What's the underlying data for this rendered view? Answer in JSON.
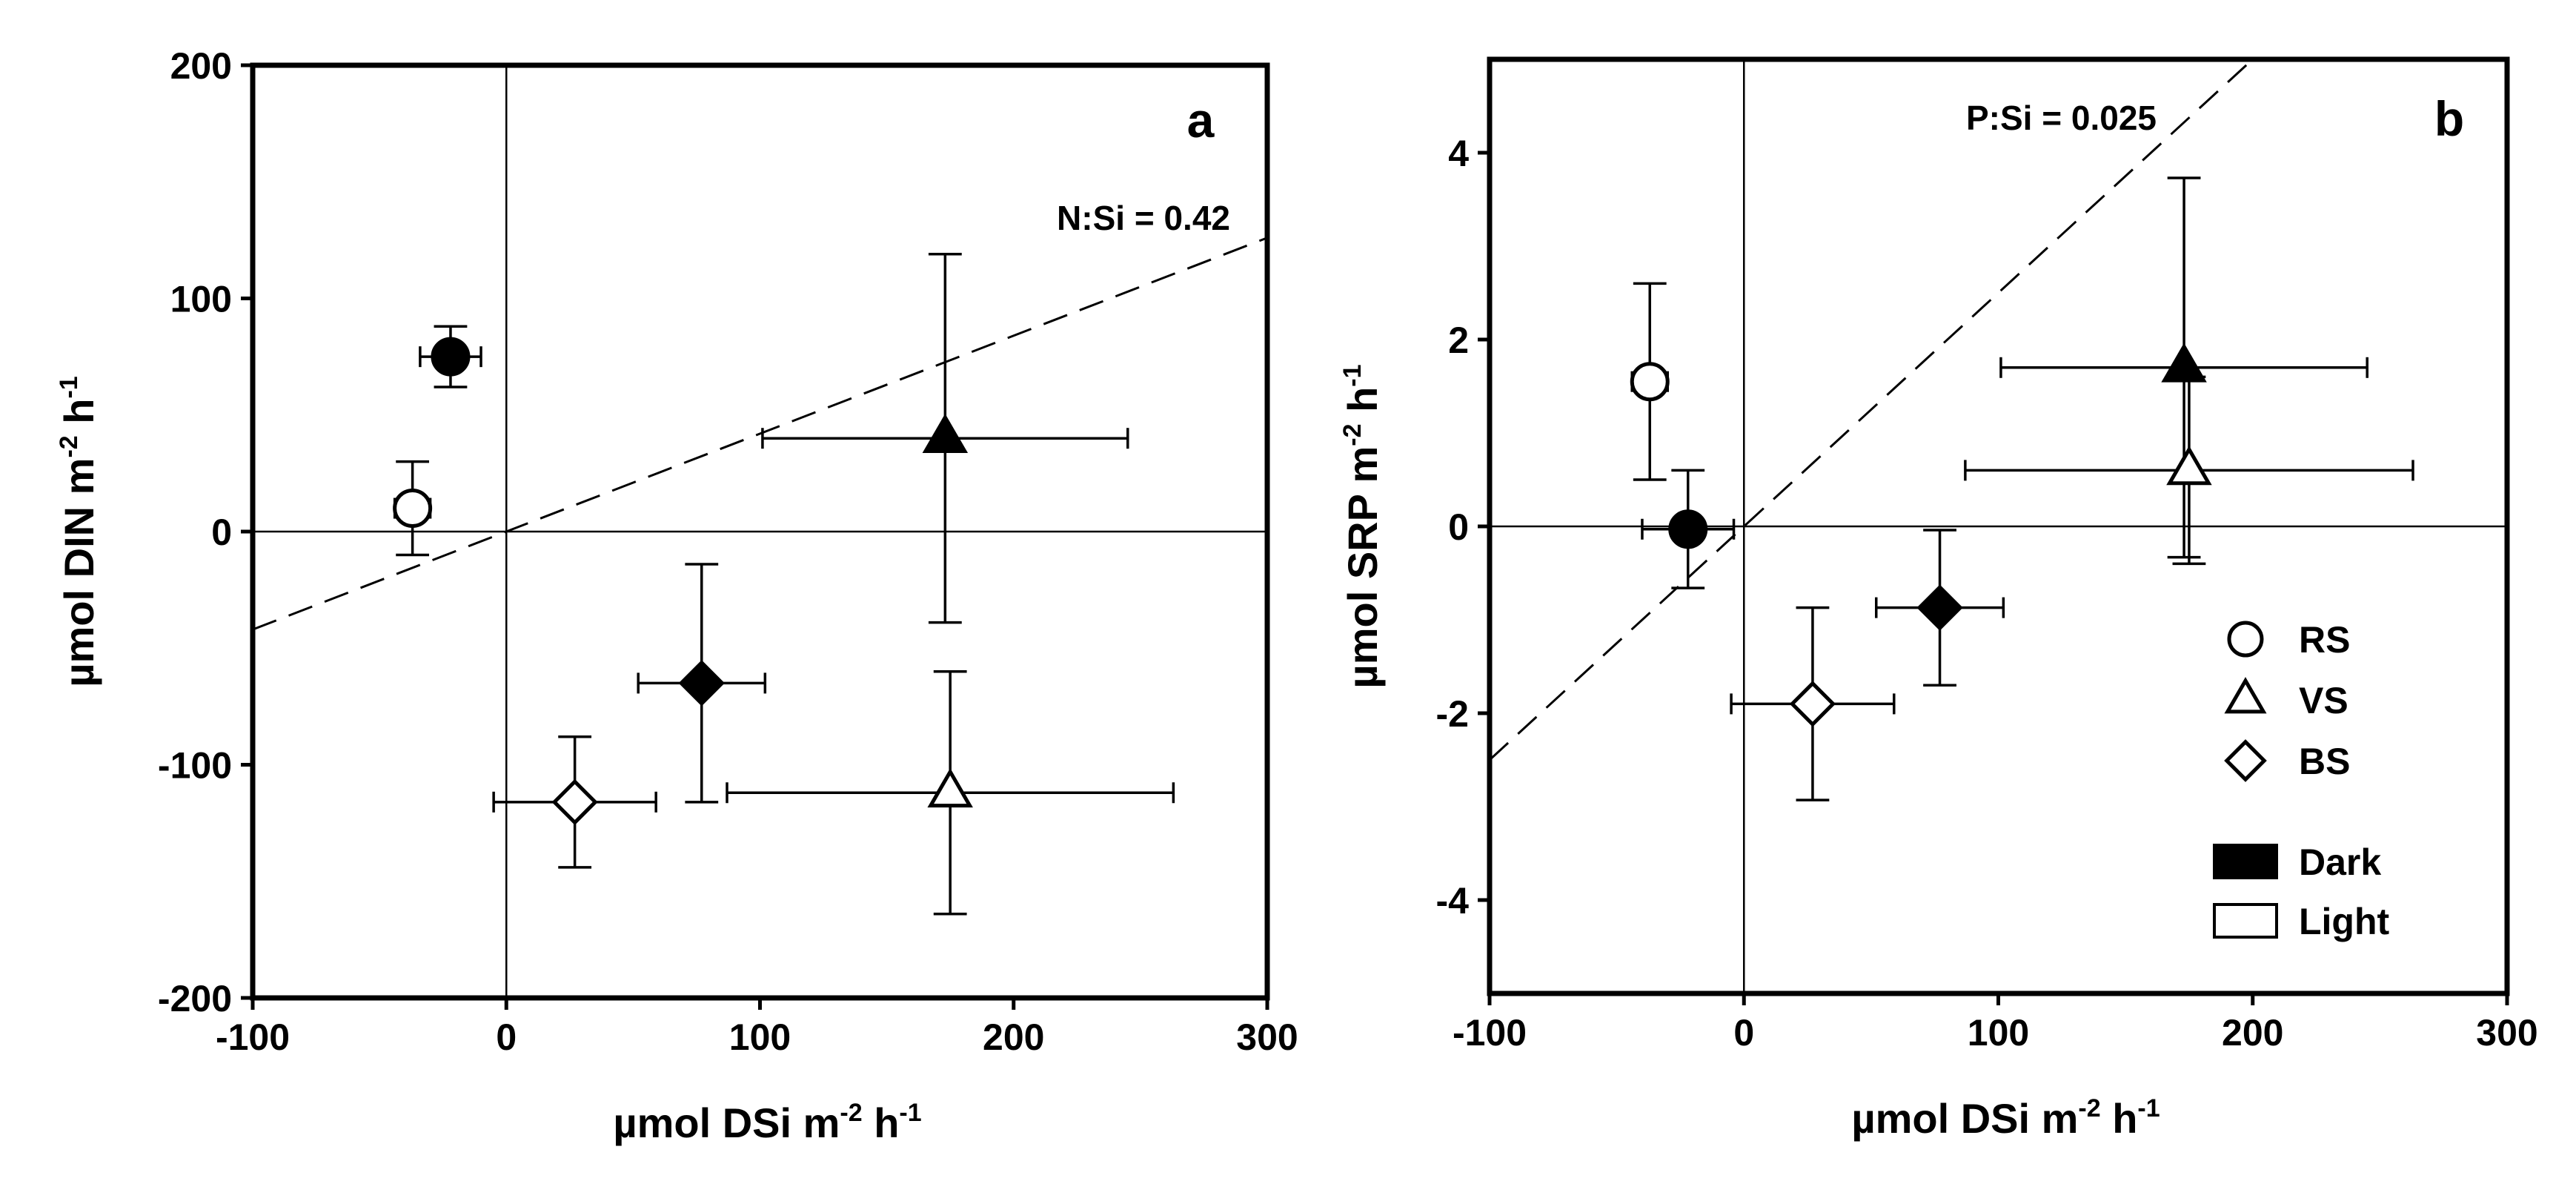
{
  "chart_data": [
    {
      "type": "scatter",
      "panel_label": "a",
      "xlabel": {
        "base": "µmol DSi m",
        "exp1": "-2",
        "mid": " h",
        "exp2": "-1"
      },
      "ylabel": {
        "base": "µmol DIN m",
        "exp1": "-2",
        "mid": " h",
        "exp2": "-1"
      },
      "xlim": [
        -100,
        300
      ],
      "ylim": [
        -200,
        200
      ],
      "xticks": [
        -100,
        0,
        100,
        200,
        300
      ],
      "yticks": [
        -200,
        -100,
        0,
        100,
        200
      ],
      "reference_lines": {
        "x": 0,
        "y": 0
      },
      "ratio_line": {
        "label": "N:Si = 0.42",
        "slope": 0.42,
        "style": "dashed"
      },
      "points": [
        {
          "site": "RS",
          "condition": "Dark",
          "marker": "circle",
          "fill": "black",
          "x": -22,
          "y": 75,
          "xerr": 12,
          "yerr": 13
        },
        {
          "site": "RS",
          "condition": "Light",
          "marker": "circle",
          "fill": "white",
          "x": -37,
          "y": 10,
          "xerr": 7,
          "yerr": 20
        },
        {
          "site": "VS",
          "condition": "Dark",
          "marker": "triangle",
          "fill": "black",
          "x": 173,
          "y": 40,
          "xerr": 72,
          "yerr": 79
        },
        {
          "site": "VS",
          "condition": "Light",
          "marker": "triangle",
          "fill": "white",
          "x": 175,
          "y": -112,
          "xerr": 88,
          "yerr": 52
        },
        {
          "site": "BS",
          "condition": "Dark",
          "marker": "diamond",
          "fill": "black",
          "x": 77,
          "y": -65,
          "xerr": 25,
          "yerr": 51
        },
        {
          "site": "BS",
          "condition": "Light",
          "marker": "diamond",
          "fill": "white",
          "x": 27,
          "y": -116,
          "xerr": 32,
          "yerr": 28
        }
      ]
    },
    {
      "type": "scatter",
      "panel_label": "b",
      "xlabel": {
        "base": "µmol DSi m",
        "exp1": "-2",
        "mid": " h",
        "exp2": "-1"
      },
      "ylabel": {
        "base": "µmol SRP m",
        "exp1": "-2",
        "mid": " h",
        "exp2": "-1"
      },
      "xlim": [
        -100,
        300
      ],
      "ylim": [
        -5,
        5
      ],
      "xticks": [
        -100,
        0,
        100,
        200,
        300
      ],
      "yticks": [
        -4,
        -2,
        0,
        2,
        4
      ],
      "reference_lines": {
        "x": 0,
        "y": 0
      },
      "ratio_line": {
        "label": "P:Si = 0.025",
        "slope": 0.025,
        "style": "dashed"
      },
      "points": [
        {
          "site": "RS",
          "condition": "Dark",
          "marker": "circle",
          "fill": "black",
          "x": -22,
          "y": -0.03,
          "xerr": 18,
          "yerr": 0.63
        },
        {
          "site": "RS",
          "condition": "Light",
          "marker": "circle",
          "fill": "white",
          "x": -37,
          "y": 1.55,
          "xerr": 7,
          "yerr": 1.05
        },
        {
          "site": "VS",
          "condition": "Dark",
          "marker": "triangle",
          "fill": "black",
          "x": 173,
          "y": 1.7,
          "xerr": 72,
          "yerr": 2.03
        },
        {
          "site": "VS",
          "condition": "Light",
          "marker": "triangle",
          "fill": "white",
          "x": 175,
          "y": 0.6,
          "xerr": 88,
          "yerr": 1.0
        },
        {
          "site": "BS",
          "condition": "Dark",
          "marker": "diamond",
          "fill": "black",
          "x": 77,
          "y": -0.87,
          "xerr": 25,
          "yerr": 0.83
        },
        {
          "site": "BS",
          "condition": "Light",
          "marker": "diamond",
          "fill": "white",
          "x": 27,
          "y": -1.9,
          "xerr": 32,
          "yerr": 1.03
        }
      ],
      "legend": {
        "placement": "bottom-right",
        "sites": [
          {
            "label": "RS",
            "marker": "circle"
          },
          {
            "label": "VS",
            "marker": "triangle"
          },
          {
            "label": "BS",
            "marker": "diamond"
          }
        ],
        "conditions": [
          {
            "label": "Dark",
            "fill": "black"
          },
          {
            "label": "Light",
            "fill": "white"
          }
        ]
      }
    }
  ]
}
